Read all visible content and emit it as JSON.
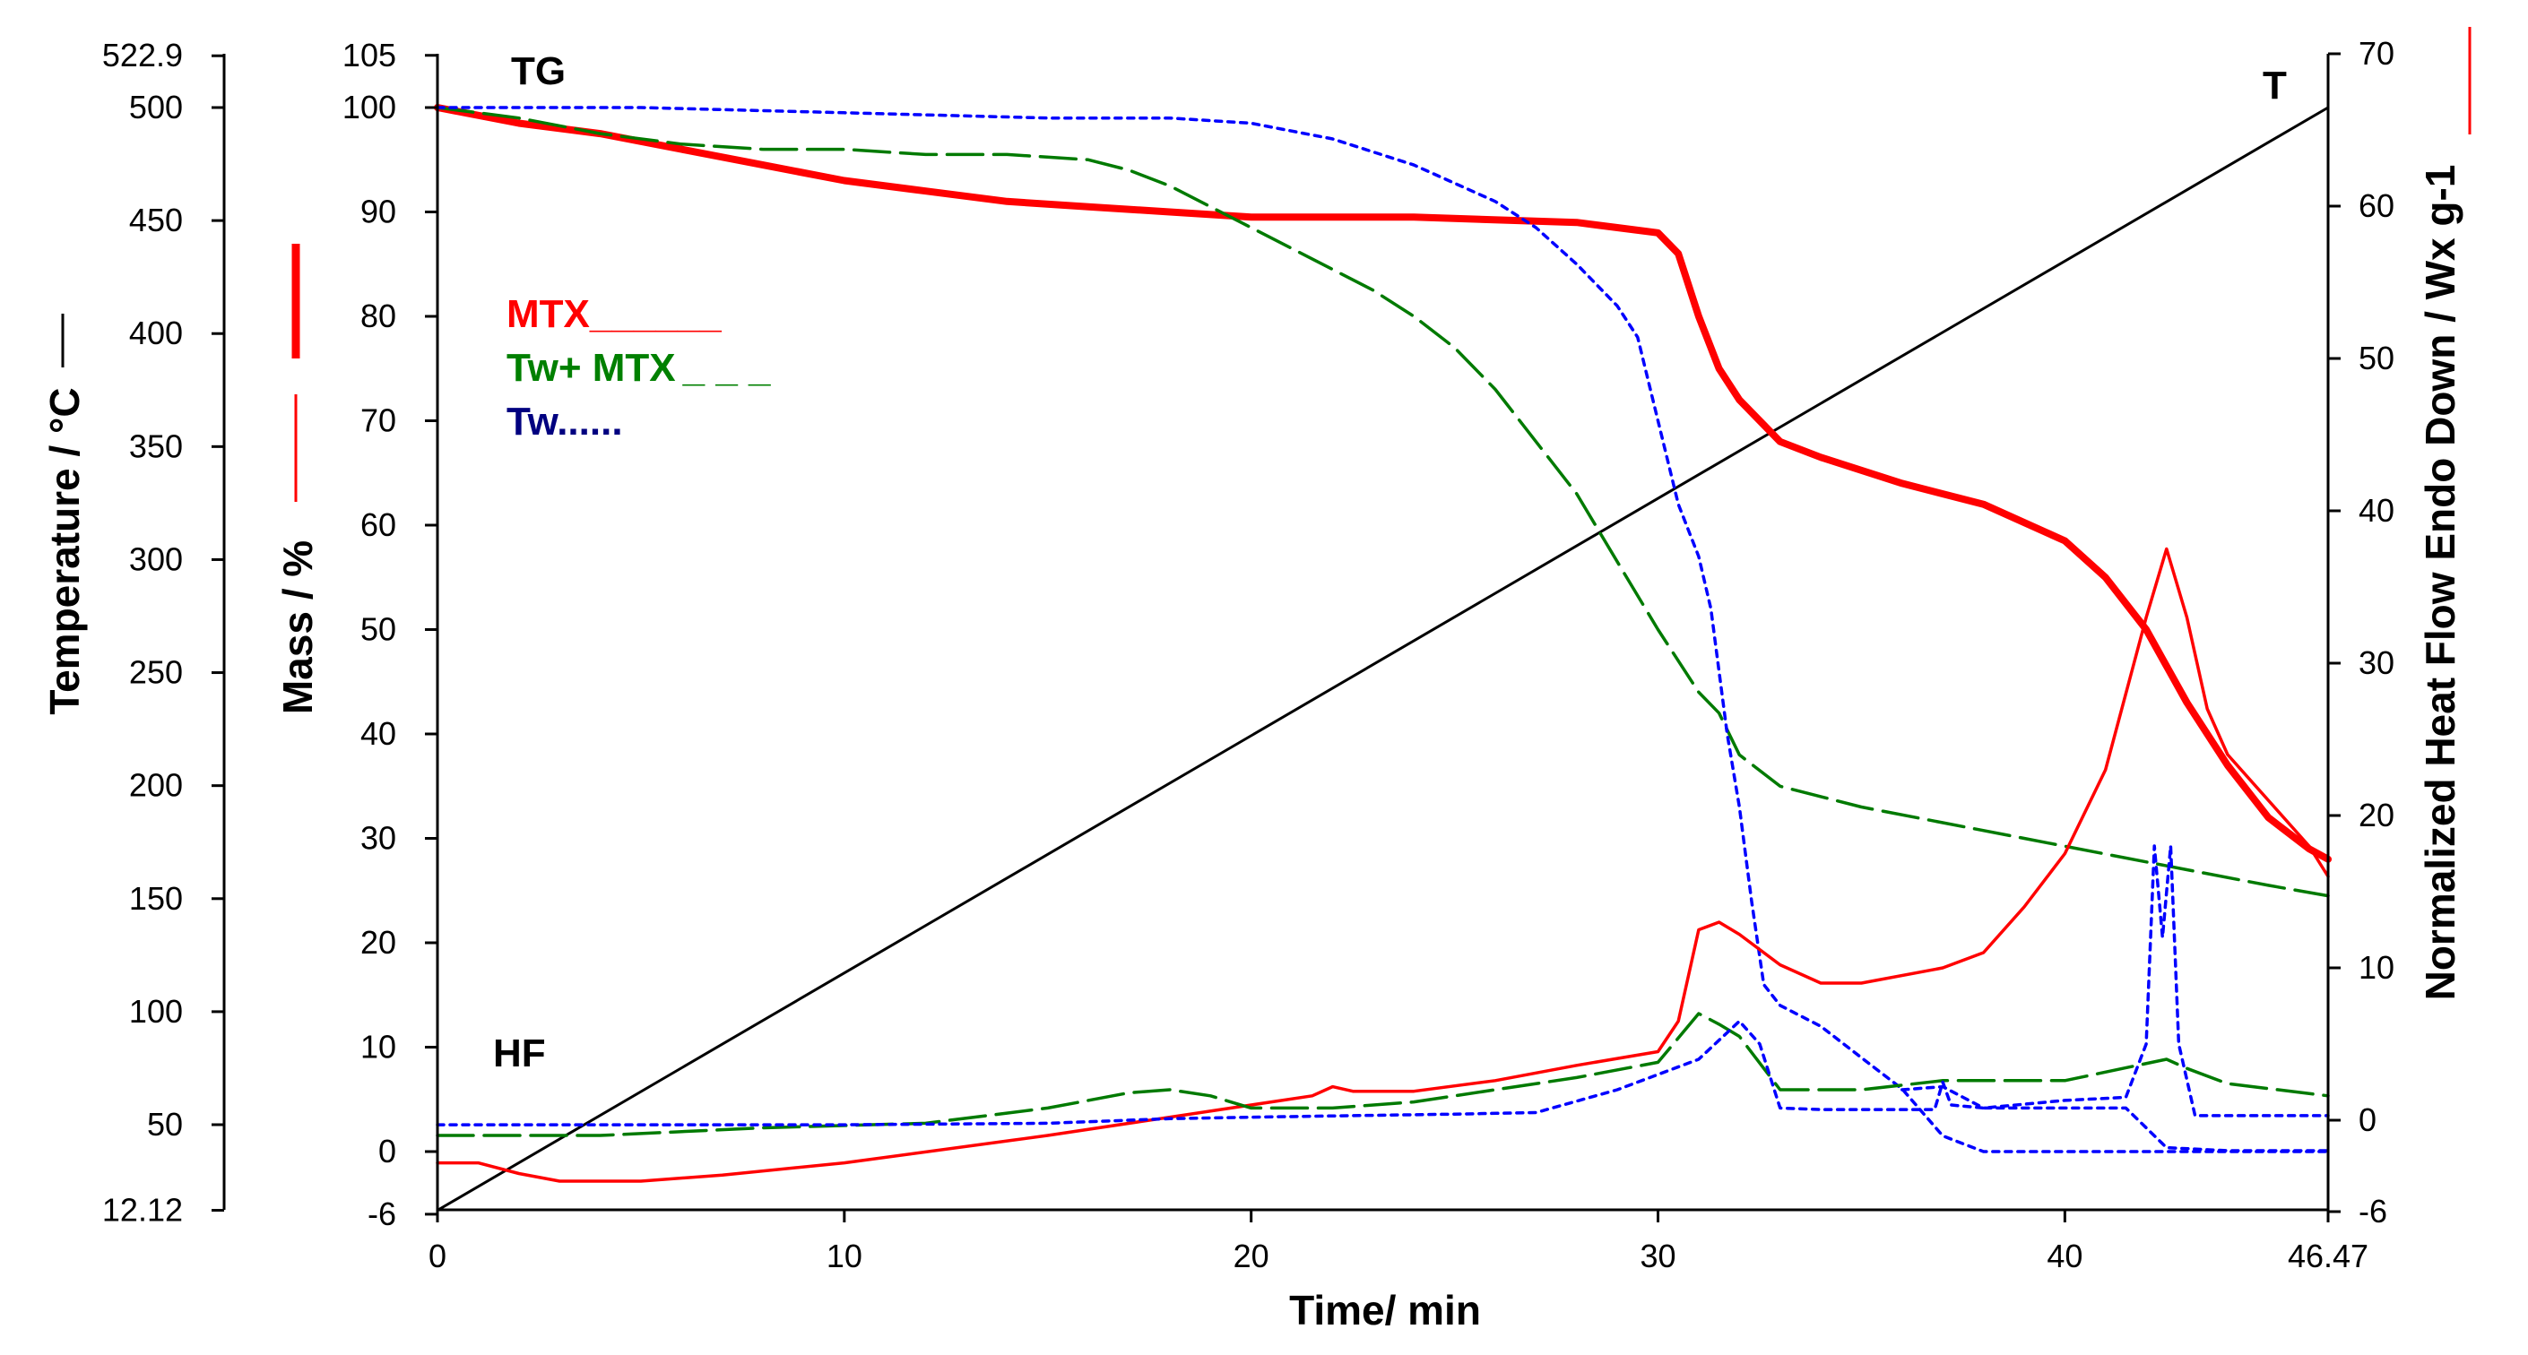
{
  "chart_data": {
    "type": "line",
    "xlabel": "Time/ min",
    "x_ticks": [
      "0",
      "10",
      "20",
      "30",
      "40",
      "46.47"
    ],
    "xlim": [
      0,
      46.47
    ],
    "axes": {
      "temperature": {
        "label": "Temperature / °C",
        "range": [
          12.12,
          522.9
        ],
        "ticks": [
          "522.9",
          "500",
          "450",
          "400",
          "350",
          "300",
          "250",
          "200",
          "150",
          "100",
          "50",
          "12.12"
        ]
      },
      "mass": {
        "label": "Mass / %",
        "range": [
          -6,
          105
        ],
        "ticks": [
          "105",
          "100",
          "90",
          "80",
          "70",
          "60",
          "50",
          "40",
          "30",
          "20",
          "10",
          "0",
          "-6"
        ]
      },
      "heat_flow": {
        "label": "Normalized Heat Flow Endo Down / Wx g-1",
        "range": [
          -6,
          70
        ],
        "ticks": [
          "70",
          "60",
          "50",
          "40",
          "30",
          "20",
          "10",
          "0",
          "-6"
        ]
      }
    },
    "annotations": {
      "tg": "TG",
      "hf": "HF",
      "t": "T"
    },
    "legend": [
      {
        "label": "MTX",
        "line": "______",
        "color": "#ff0000"
      },
      {
        "label": "Tw+ MTX",
        "line": "_ _ _",
        "color": "#008000"
      },
      {
        "label": "Tw",
        "line": "......",
        "color": "#000080"
      }
    ],
    "colors": {
      "mtx": "#ff0000",
      "tw_mtx": "#007a00",
      "tw": "#0000ff",
      "temp": "#000000"
    },
    "series": [
      {
        "name": "T",
        "axis": "temperature",
        "style": "temp",
        "points": [
          [
            0,
            12.12
          ],
          [
            46.47,
            500
          ]
        ]
      },
      {
        "name": "MTX TG",
        "axis": "mass",
        "style": "mtx_tg",
        "points": [
          [
            0,
            100
          ],
          [
            2,
            98.5
          ],
          [
            4,
            97.5
          ],
          [
            6,
            96
          ],
          [
            8,
            94.5
          ],
          [
            10,
            93
          ],
          [
            12,
            92
          ],
          [
            14,
            91
          ],
          [
            16,
            90.5
          ],
          [
            18,
            90
          ],
          [
            20,
            89.5
          ],
          [
            24,
            89.5
          ],
          [
            28,
            89
          ],
          [
            29,
            88.5
          ],
          [
            30,
            88
          ],
          [
            30.5,
            86
          ],
          [
            31,
            80
          ],
          [
            31.5,
            75
          ],
          [
            32,
            72
          ],
          [
            33,
            68
          ],
          [
            34,
            66.5
          ],
          [
            36,
            64
          ],
          [
            38,
            62
          ],
          [
            40,
            58.5
          ],
          [
            41,
            55
          ],
          [
            42,
            50
          ],
          [
            43,
            43
          ],
          [
            44,
            37
          ],
          [
            45,
            32
          ],
          [
            46,
            29
          ],
          [
            46.47,
            28
          ]
        ]
      },
      {
        "name": "Tw+MTX TG",
        "axis": "mass",
        "style": "twmtx",
        "points": [
          [
            0,
            100
          ],
          [
            2,
            99
          ],
          [
            4,
            97.5
          ],
          [
            6,
            96.5
          ],
          [
            8,
            96
          ],
          [
            10,
            96
          ],
          [
            12,
            95.5
          ],
          [
            14,
            95.5
          ],
          [
            16,
            95
          ],
          [
            17,
            94
          ],
          [
            18,
            92.5
          ],
          [
            19,
            90.5
          ],
          [
            20,
            88.5
          ],
          [
            21,
            86.5
          ],
          [
            22,
            84.5
          ],
          [
            23,
            82.5
          ],
          [
            24,
            80
          ],
          [
            25,
            77
          ],
          [
            26,
            73
          ],
          [
            27,
            68
          ],
          [
            28,
            63
          ],
          [
            29,
            56.5
          ],
          [
            30,
            50
          ],
          [
            31,
            44
          ],
          [
            31.5,
            42
          ],
          [
            32,
            38
          ],
          [
            33,
            35
          ],
          [
            35,
            33
          ],
          [
            37,
            31.5
          ],
          [
            39,
            30
          ],
          [
            41,
            28.5
          ],
          [
            43,
            27
          ],
          [
            45,
            25.5
          ],
          [
            46.47,
            24.5
          ]
        ]
      },
      {
        "name": "Tw TG",
        "axis": "mass",
        "style": "tw",
        "points": [
          [
            0,
            100
          ],
          [
            5,
            100
          ],
          [
            10,
            99.5
          ],
          [
            15,
            99
          ],
          [
            18,
            99
          ],
          [
            20,
            98.5
          ],
          [
            22,
            97
          ],
          [
            24,
            94.5
          ],
          [
            26,
            91
          ],
          [
            27,
            88.5
          ],
          [
            28,
            85
          ],
          [
            29,
            81
          ],
          [
            29.5,
            78
          ],
          [
            30,
            70
          ],
          [
            30.5,
            62
          ],
          [
            31,
            57
          ],
          [
            31.3,
            52
          ],
          [
            31.7,
            40
          ],
          [
            32,
            33
          ],
          [
            32.3,
            24
          ],
          [
            32.6,
            16
          ],
          [
            33,
            14
          ],
          [
            34,
            12
          ],
          [
            35,
            9
          ],
          [
            36,
            6
          ],
          [
            37,
            1.5
          ],
          [
            38,
            0
          ],
          [
            46.47,
            0
          ]
        ]
      },
      {
        "name": "MTX HF",
        "axis": "heat_flow",
        "style": "mtx_hf",
        "points": [
          [
            0,
            -2.8
          ],
          [
            1,
            -2.8
          ],
          [
            2,
            -3.5
          ],
          [
            3,
            -4
          ],
          [
            5,
            -4
          ],
          [
            7,
            -3.6
          ],
          [
            10,
            -2.8
          ],
          [
            15,
            -1
          ],
          [
            20,
            1
          ],
          [
            21.5,
            1.6
          ],
          [
            22,
            2.2
          ],
          [
            22.5,
            1.9
          ],
          [
            24,
            1.9
          ],
          [
            26,
            2.6
          ],
          [
            28,
            3.6
          ],
          [
            30,
            4.5
          ],
          [
            30.5,
            6.5
          ],
          [
            31,
            12.5
          ],
          [
            31.5,
            13
          ],
          [
            32,
            12.2
          ],
          [
            33,
            10.2
          ],
          [
            34,
            9
          ],
          [
            35,
            9
          ],
          [
            37,
            10
          ],
          [
            38,
            11
          ],
          [
            39,
            14
          ],
          [
            40,
            17.5
          ],
          [
            41,
            23
          ],
          [
            41.5,
            28
          ],
          [
            42,
            33
          ],
          [
            42.5,
            37.5
          ],
          [
            43,
            33
          ],
          [
            43.5,
            27
          ],
          [
            44,
            24
          ],
          [
            45,
            21
          ],
          [
            46,
            18
          ],
          [
            46.47,
            16
          ]
        ]
      },
      {
        "name": "Tw+MTX HF",
        "axis": "heat_flow",
        "style": "twmtx",
        "points": [
          [
            0,
            -1
          ],
          [
            4,
            -1
          ],
          [
            8,
            -0.5
          ],
          [
            12,
            -0.2
          ],
          [
            15,
            0.8
          ],
          [
            17,
            1.8
          ],
          [
            18,
            2
          ],
          [
            19,
            1.6
          ],
          [
            20,
            0.8
          ],
          [
            22,
            0.8
          ],
          [
            24,
            1.2
          ],
          [
            26,
            2
          ],
          [
            28,
            2.8
          ],
          [
            30,
            3.8
          ],
          [
            31,
            7
          ],
          [
            31.5,
            6.3
          ],
          [
            32,
            5.5
          ],
          [
            33,
            2
          ],
          [
            35,
            2
          ],
          [
            37,
            2.6
          ],
          [
            40,
            2.6
          ],
          [
            42.5,
            4
          ],
          [
            43,
            3.4
          ],
          [
            44,
            2.4
          ],
          [
            46.47,
            1.6
          ]
        ]
      },
      {
        "name": "Tw HF",
        "axis": "heat_flow",
        "style": "tw",
        "points": [
          [
            0,
            -0.3
          ],
          [
            5,
            -0.3
          ],
          [
            10,
            -0.3
          ],
          [
            15,
            -0.2
          ],
          [
            18,
            0.1
          ],
          [
            20,
            0.2
          ],
          [
            25,
            0.4
          ],
          [
            27,
            0.5
          ],
          [
            29,
            2
          ],
          [
            31,
            4
          ],
          [
            32,
            6.5
          ],
          [
            32.5,
            5
          ],
          [
            33,
            0.8
          ],
          [
            34,
            0.7
          ],
          [
            36.8,
            0.7
          ],
          [
            37,
            2.5
          ],
          [
            37.2,
            1
          ],
          [
            38,
            0.8
          ],
          [
            40,
            1.3
          ],
          [
            41.5,
            1.5
          ],
          [
            42,
            5
          ],
          [
            42.2,
            18
          ],
          [
            42.4,
            12
          ],
          [
            42.6,
            18
          ],
          [
            42.8,
            5
          ],
          [
            43.2,
            0.3
          ],
          [
            46.47,
            0.3
          ]
        ]
      },
      {
        "name": "Tw HF lower",
        "axis": "heat_flow",
        "style": "tw",
        "points": [
          [
            36,
            2
          ],
          [
            37,
            2.2
          ],
          [
            37.5,
            1.5
          ],
          [
            38,
            0.8
          ],
          [
            40,
            0.8
          ],
          [
            41.5,
            0.8
          ],
          [
            42,
            -0.5
          ],
          [
            42.5,
            -1.8
          ],
          [
            44,
            -2
          ],
          [
            46.47,
            -2
          ]
        ]
      }
    ]
  }
}
